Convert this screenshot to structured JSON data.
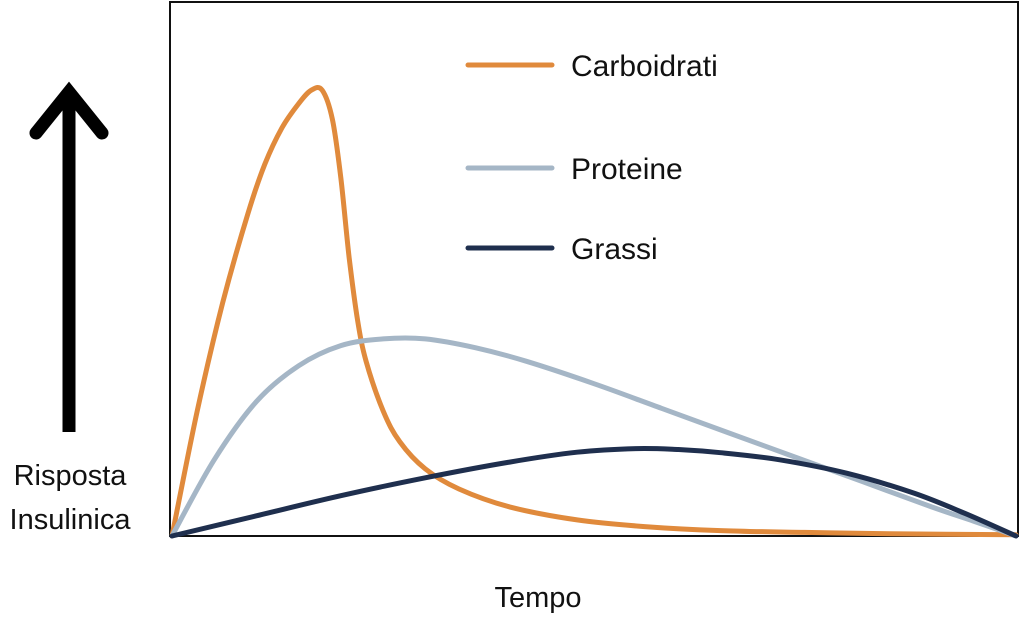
{
  "chart_data": {
    "type": "line",
    "title": "",
    "xlabel": "Tempo",
    "ylabel": [
      "Risposta",
      "Insulinica"
    ],
    "xlim": [
      0,
      100
    ],
    "ylim": [
      0,
      100
    ],
    "grid": false,
    "legend_position": "top-right",
    "series": [
      {
        "name": "Carboidrati",
        "color": "#E08A3C",
        "points": [
          [
            0,
            0
          ],
          [
            3,
            28
          ],
          [
            6,
            52
          ],
          [
            9,
            72
          ],
          [
            11,
            83
          ],
          [
            13,
            91
          ],
          [
            15,
            96.5
          ],
          [
            16.5,
            99.5
          ],
          [
            17.8,
            99.5
          ],
          [
            19,
            93
          ],
          [
            20,
            80
          ],
          [
            21,
            62
          ],
          [
            22,
            48
          ],
          [
            23,
            39
          ],
          [
            25,
            28
          ],
          [
            27,
            21
          ],
          [
            30,
            15
          ],
          [
            34,
            10.5
          ],
          [
            40,
            6.5
          ],
          [
            48,
            3.6
          ],
          [
            56,
            2.1
          ],
          [
            65,
            1.2
          ],
          [
            75,
            0.8
          ],
          [
            85,
            0.5
          ],
          [
            100,
            0.3
          ]
        ]
      },
      {
        "name": "Proteine",
        "color": "#A5B6C6",
        "points": [
          [
            0,
            0
          ],
          [
            5,
            17
          ],
          [
            10,
            30
          ],
          [
            15,
            38
          ],
          [
            20,
            42.5
          ],
          [
            25,
            44
          ],
          [
            30,
            44
          ],
          [
            36,
            42
          ],
          [
            42,
            39
          ],
          [
            50,
            34
          ],
          [
            58,
            28.5
          ],
          [
            66,
            23
          ],
          [
            74,
            17.5
          ],
          [
            82,
            12
          ],
          [
            90,
            6.5
          ],
          [
            95,
            3.3
          ],
          [
            100,
            0
          ]
        ]
      },
      {
        "name": "Grassi",
        "color": "#1F2F4E",
        "points": [
          [
            0,
            0
          ],
          [
            10,
            4.5
          ],
          [
            20,
            9
          ],
          [
            30,
            13
          ],
          [
            40,
            16.5
          ],
          [
            48,
            18.7
          ],
          [
            55,
            19.5
          ],
          [
            60,
            19.3
          ],
          [
            65,
            18.6
          ],
          [
            72,
            17
          ],
          [
            80,
            14
          ],
          [
            88,
            9.5
          ],
          [
            94,
            5
          ],
          [
            100,
            0
          ]
        ]
      }
    ]
  }
}
